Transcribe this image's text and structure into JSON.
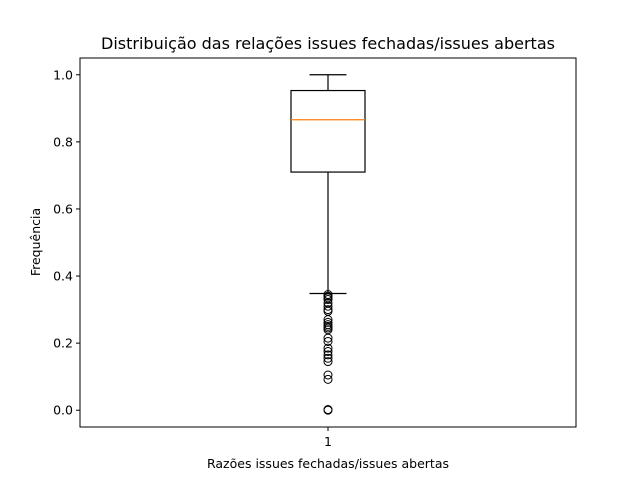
{
  "chart_data": {
    "type": "box",
    "title": "Distribuição das relações issues fechadas/issues abertas",
    "xlabel": "Razões issues fechadas/issues abertas",
    "ylabel": "Frequência",
    "categories": [
      "1"
    ],
    "ylim": [
      -0.05,
      1.05
    ],
    "yticks": [
      0.0,
      0.2,
      0.4,
      0.6,
      0.8,
      1.0
    ],
    "ytick_labels": [
      "0.0",
      "0.2",
      "0.4",
      "0.6",
      "0.8",
      "1.0"
    ],
    "grid": false,
    "box": {
      "whisker_low": 0.348,
      "q1": 0.71,
      "median": 0.866,
      "q3": 0.953,
      "whisker_high": 1.0,
      "outliers": [
        0.345,
        0.34,
        0.335,
        0.33,
        0.32,
        0.31,
        0.3,
        0.295,
        0.27,
        0.262,
        0.255,
        0.25,
        0.245,
        0.24,
        0.215,
        0.205,
        0.185,
        0.175,
        0.165,
        0.155,
        0.145,
        0.105,
        0.092,
        0.002,
        0.0
      ]
    },
    "colors": {
      "box": "#000000",
      "median": "#ff7f0e",
      "whisker": "#000000",
      "outlier": "#000000"
    }
  }
}
